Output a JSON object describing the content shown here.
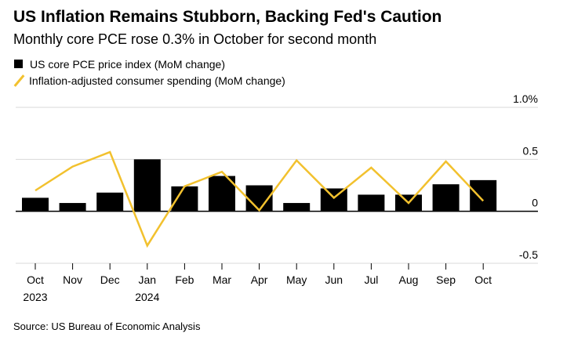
{
  "header": {
    "title": "US Inflation Remains Stubborn, Backing Fed's Caution",
    "subtitle": "Monthly core PCE rose 0.3% in October for second month"
  },
  "legend": {
    "bar_label": "US core PCE price index (MoM change)",
    "line_label": "Inflation-adjusted consumer spending (MoM change)"
  },
  "footer": {
    "source": "Source: US Bureau of Economic Analysis"
  },
  "chart_data": {
    "type": "bar",
    "categories": [
      "Oct",
      "Nov",
      "Dec",
      "Jan",
      "Feb",
      "Mar",
      "Apr",
      "May",
      "Jun",
      "Jul",
      "Aug",
      "Sep",
      "Oct"
    ],
    "year_labels": [
      "2023",
      "",
      "",
      "2024",
      "",
      "",
      "",
      "",
      "",
      "",
      "",
      "",
      ""
    ],
    "series": [
      {
        "name": "US core PCE price index (MoM change)",
        "kind": "bar",
        "color": "#000000",
        "values": [
          0.13,
          0.08,
          0.18,
          0.5,
          0.24,
          0.34,
          0.25,
          0.08,
          0.22,
          0.16,
          0.16,
          0.26,
          0.3
        ]
      },
      {
        "name": "Inflation-adjusted consumer spending (MoM change)",
        "kind": "line",
        "color": "#f2c12e",
        "values": [
          0.2,
          0.43,
          0.57,
          -0.33,
          0.24,
          0.38,
          0.01,
          0.49,
          0.13,
          0.42,
          0.08,
          0.48,
          0.1
        ]
      }
    ],
    "y_ticks": [
      {
        "value": 1.0,
        "label": "1.0%"
      },
      {
        "value": 0.5,
        "label": "0.5"
      },
      {
        "value": 0,
        "label": "0"
      },
      {
        "value": -0.5,
        "label": "-0.5"
      }
    ],
    "ylim": [
      -0.5,
      1.0
    ],
    "grid": true
  }
}
